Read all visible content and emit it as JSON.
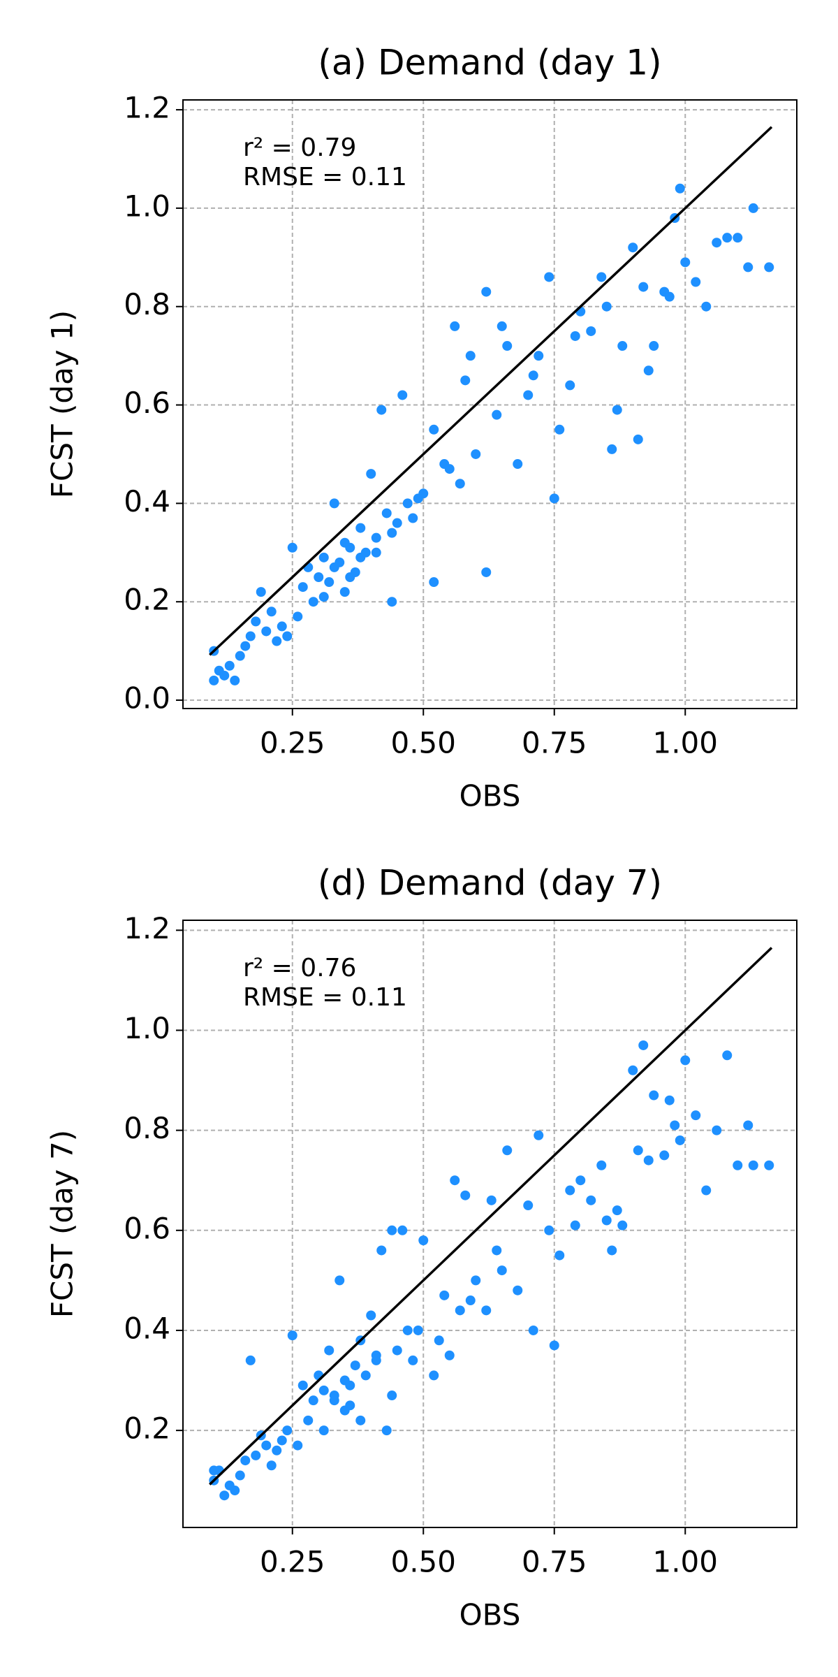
{
  "chart_data": [
    {
      "type": "scatter",
      "title": "(a) Demand (day 1)",
      "x_label": "OBS",
      "y_label": "FCST (day 1)",
      "annotations": [
        "r² = 0.79",
        "RMSE = 0.11"
      ],
      "color": "#1e90ff",
      "grid": true,
      "xlim": [
        0.041,
        1.213
      ],
      "ylim": [
        -0.017,
        1.22
      ],
      "xticks": [
        {
          "value": 0.25,
          "label": "0.25"
        },
        {
          "value": 0.5,
          "label": "0.50"
        },
        {
          "value": 0.75,
          "label": "0.75"
        },
        {
          "value": 1,
          "label": "1.00"
        }
      ],
      "yticks": [
        {
          "value": 0,
          "label": "0.0"
        },
        0.2,
        0.4,
        0.6,
        0.8,
        {
          "value": 1,
          "label": "1.0"
        },
        1.2
      ],
      "line": {
        "color": "#000000",
        "x": [
          0.092,
          1.165
        ],
        "y": [
          0.092,
          1.165
        ]
      },
      "x": [
        0.1,
        0.11,
        0.12,
        0.13,
        0.14,
        0.1,
        0.15,
        0.16,
        0.17,
        0.18,
        0.19,
        0.2,
        0.21,
        0.22,
        0.23,
        0.24,
        0.25,
        0.26,
        0.27,
        0.28,
        0.29,
        0.3,
        0.31,
        0.32,
        0.33,
        0.34,
        0.35,
        0.36,
        0.37,
        0.38,
        0.39,
        0.4,
        0.41,
        0.42,
        0.43,
        0.44,
        0.45,
        0.46,
        0.47,
        0.48,
        0.5,
        0.52,
        0.52,
        0.54,
        0.56,
        0.57,
        0.58,
        0.6,
        0.62,
        0.62,
        0.64,
        0.66,
        0.68,
        0.7,
        0.72,
        0.74,
        0.75,
        0.76,
        0.78,
        0.8,
        0.82,
        0.84,
        0.86,
        0.87,
        0.88,
        0.9,
        0.91,
        0.92,
        0.94,
        0.96,
        0.98,
        0.99,
        1.0,
        1.02,
        1.04,
        1.06,
        1.08,
        1.1,
        1.12,
        1.13,
        1.16,
        0.31,
        0.33,
        0.35,
        0.36,
        0.38,
        0.41,
        0.44,
        0.49,
        0.55,
        0.59,
        0.65,
        0.71,
        0.79,
        0.85,
        0.93,
        0.97
      ],
      "y": [
        0.04,
        0.06,
        0.05,
        0.07,
        0.04,
        0.1,
        0.09,
        0.11,
        0.13,
        0.16,
        0.22,
        0.14,
        0.18,
        0.12,
        0.15,
        0.13,
        0.31,
        0.17,
        0.23,
        0.27,
        0.2,
        0.25,
        0.29,
        0.24,
        0.4,
        0.28,
        0.22,
        0.31,
        0.26,
        0.35,
        0.3,
        0.46,
        0.33,
        0.59,
        0.38,
        0.2,
        0.36,
        0.62,
        0.4,
        0.37,
        0.42,
        0.24,
        0.55,
        0.48,
        0.76,
        0.44,
        0.65,
        0.5,
        0.26,
        0.83,
        0.58,
        0.72,
        0.48,
        0.62,
        0.7,
        0.86,
        0.41,
        0.55,
        0.64,
        0.79,
        0.75,
        0.86,
        0.51,
        0.59,
        0.72,
        0.92,
        0.53,
        0.84,
        0.72,
        0.83,
        0.98,
        1.04,
        0.89,
        0.85,
        0.8,
        0.93,
        0.94,
        0.94,
        0.88,
        1.0,
        0.88,
        0.21,
        0.27,
        0.32,
        0.25,
        0.29,
        0.3,
        0.34,
        0.41,
        0.47,
        0.7,
        0.76,
        0.66,
        0.74,
        0.8,
        0.67,
        0.82
      ]
    },
    {
      "type": "scatter",
      "title": "(d) Demand (day 7)",
      "x_label": "OBS",
      "y_label": "FCST (day 7)",
      "annotations": [
        "r² = 0.76",
        "RMSE = 0.11"
      ],
      "color": "#1e90ff",
      "grid": true,
      "xlim": [
        0.041,
        1.213
      ],
      "ylim": [
        0.006,
        1.22
      ],
      "xticks": [
        {
          "value": 0.25,
          "label": "0.25"
        },
        {
          "value": 0.5,
          "label": "0.50"
        },
        {
          "value": 0.75,
          "label": "0.75"
        },
        {
          "value": 1,
          "label": "1.00"
        }
      ],
      "yticks": [
        0.2,
        0.4,
        0.6,
        0.8,
        {
          "value": 1,
          "label": "1.0"
        },
        1.2
      ],
      "line": {
        "color": "#000000",
        "x": [
          0.092,
          1.165
        ],
        "y": [
          0.092,
          1.165
        ]
      },
      "x": [
        0.1,
        0.11,
        0.12,
        0.13,
        0.14,
        0.1,
        0.15,
        0.16,
        0.17,
        0.18,
        0.19,
        0.2,
        0.21,
        0.22,
        0.23,
        0.24,
        0.25,
        0.26,
        0.27,
        0.28,
        0.29,
        0.3,
        0.31,
        0.32,
        0.33,
        0.34,
        0.35,
        0.36,
        0.37,
        0.38,
        0.39,
        0.4,
        0.41,
        0.42,
        0.43,
        0.44,
        0.45,
        0.46,
        0.47,
        0.48,
        0.5,
        0.52,
        0.53,
        0.54,
        0.56,
        0.57,
        0.58,
        0.6,
        0.62,
        0.63,
        0.64,
        0.66,
        0.68,
        0.7,
        0.72,
        0.74,
        0.75,
        0.76,
        0.78,
        0.8,
        0.82,
        0.84,
        0.86,
        0.87,
        0.88,
        0.9,
        0.91,
        0.92,
        0.94,
        0.96,
        0.98,
        0.99,
        1.0,
        1.02,
        1.04,
        1.06,
        1.08,
        1.1,
        1.12,
        1.13,
        1.16,
        0.31,
        0.33,
        0.35,
        0.36,
        0.38,
        0.41,
        0.44,
        0.49,
        0.55,
        0.59,
        0.65,
        0.71,
        0.79,
        0.85,
        0.93,
        0.97
      ],
      "y": [
        0.1,
        0.12,
        0.07,
        0.09,
        0.08,
        0.12,
        0.11,
        0.14,
        0.34,
        0.15,
        0.19,
        0.17,
        0.13,
        0.16,
        0.18,
        0.2,
        0.39,
        0.17,
        0.29,
        0.22,
        0.26,
        0.31,
        0.28,
        0.36,
        0.27,
        0.5,
        0.3,
        0.25,
        0.33,
        0.38,
        0.31,
        0.43,
        0.35,
        0.56,
        0.2,
        0.6,
        0.36,
        0.6,
        0.4,
        0.34,
        0.58,
        0.31,
        0.38,
        0.47,
        0.7,
        0.44,
        0.67,
        0.5,
        0.44,
        0.66,
        0.56,
        0.76,
        0.48,
        0.65,
        0.79,
        0.6,
        0.37,
        0.55,
        0.68,
        0.7,
        0.66,
        0.73,
        0.56,
        0.64,
        0.61,
        0.92,
        0.76,
        0.97,
        0.87,
        0.75,
        0.81,
        0.78,
        0.94,
        0.83,
        0.68,
        0.8,
        0.95,
        0.73,
        0.81,
        0.73,
        0.73,
        0.2,
        0.26,
        0.24,
        0.29,
        0.22,
        0.34,
        0.27,
        0.4,
        0.35,
        0.46,
        0.52,
        0.4,
        0.61,
        0.62,
        0.74,
        0.86
      ]
    }
  ]
}
